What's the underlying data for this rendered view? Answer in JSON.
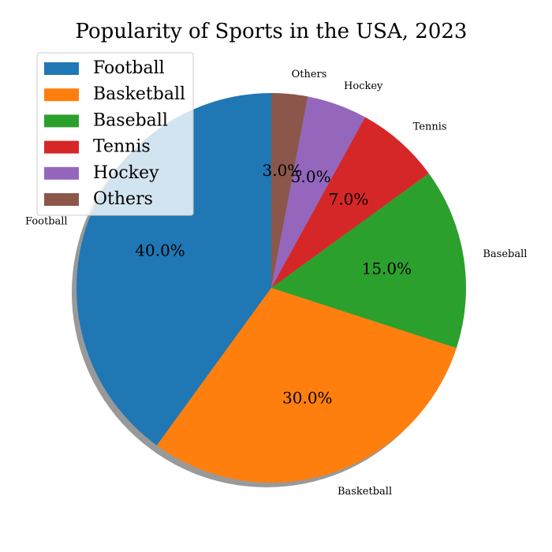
{
  "chart_data": {
    "type": "pie",
    "title": "Popularity of Sports in the USA, 2023",
    "categories": [
      "Football",
      "Basketball",
      "Baseball",
      "Tennis",
      "Hockey",
      "Others"
    ],
    "values": [
      40,
      30,
      15,
      7,
      5,
      3
    ],
    "percent_labels": [
      "40.0%",
      "30.0%",
      "15.0%",
      "7.0%",
      "5.0%",
      "3.0%"
    ],
    "colors": [
      "#1f77b4",
      "#ff7f0e",
      "#2ca02c",
      "#d62728",
      "#9467bd",
      "#8c564b"
    ],
    "start_angle_deg": 90,
    "direction": "counterclockwise",
    "shadow": true,
    "legend_placement": "upper-left"
  }
}
